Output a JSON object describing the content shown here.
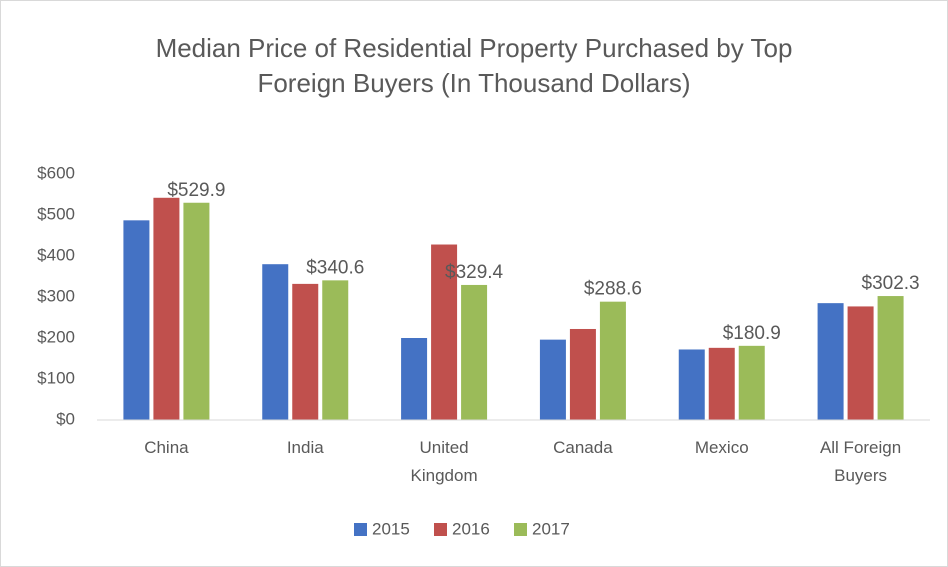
{
  "chart_data": {
    "type": "bar",
    "title": "Median Price of Residential Property Purchased by Top Foreign Buyers (In Thousand Dollars)",
    "categories": [
      "China",
      "India",
      "United Kingdom",
      "Canada",
      "Mexico",
      "All Foreign Buyers"
    ],
    "series": [
      {
        "name": "2015",
        "color": "#4472c4",
        "values": [
          487,
          380,
          200,
          196,
          172,
          285
        ]
      },
      {
        "name": "2016",
        "color": "#c0504d",
        "values": [
          542,
          332,
          428,
          222,
          176,
          277
        ]
      },
      {
        "name": "2017",
        "color": "#9bbb59",
        "values": [
          529.9,
          340.6,
          329.4,
          288.6,
          180.9,
          302.3
        ],
        "value_labels": [
          "$529.9",
          "$340.6",
          "$329.4",
          "$288.6",
          "$180.9",
          "$302.3"
        ]
      }
    ],
    "ylim": [
      0,
      600
    ],
    "yticks": [
      {
        "value": 0,
        "label": "$0"
      },
      {
        "value": 100,
        "label": "$100"
      },
      {
        "value": 200,
        "label": "$200"
      },
      {
        "value": 300,
        "label": "$300"
      },
      {
        "value": 400,
        "label": "$400"
      },
      {
        "value": 500,
        "label": "$500"
      },
      {
        "value": 600,
        "label": "$600"
      }
    ],
    "grid": false,
    "legend": "bottom"
  }
}
